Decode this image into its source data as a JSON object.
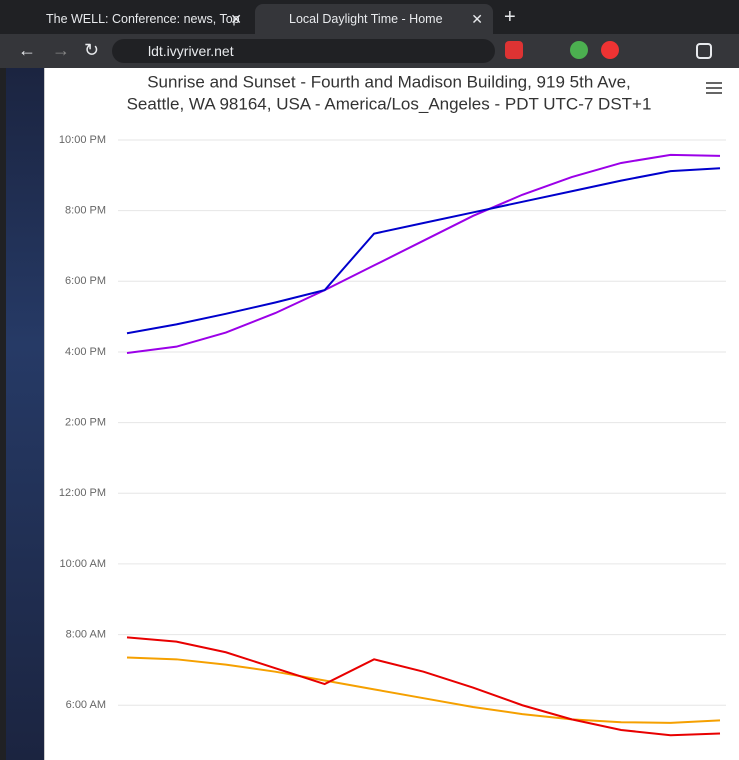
{
  "browser": {
    "tabs": [
      "The WELL: Conference: news, Top",
      "Local Daylight Time - Home"
    ],
    "url": "ldt.ivyriver.net"
  },
  "chart_data": {
    "type": "line",
    "title": [
      "Sunrise and Sunset - Fourth and Madison Building, 919 5th Ave,",
      "Seattle, WA 98164, USA - America/Los_Angeles - PDT UTC-7 DST+1"
    ],
    "ylim": [
      4.45,
      22.3
    ],
    "yticks": [
      {
        "value": 6,
        "label": "6:00 AM"
      },
      {
        "value": 8,
        "label": "8:00 AM"
      },
      {
        "value": 10,
        "label": "10:00 AM"
      },
      {
        "value": 12,
        "label": "12:00 PM"
      },
      {
        "value": 14,
        "label": "2:00 PM"
      },
      {
        "value": 16,
        "label": "4:00 PM"
      },
      {
        "value": 18,
        "label": "6:00 PM"
      },
      {
        "value": 20,
        "label": "8:00 PM"
      },
      {
        "value": 22,
        "label": "10:00 PM"
      }
    ],
    "grid": true,
    "series": [
      {
        "color": "#9b00e8",
        "values": [
          15.97,
          16.15,
          16.55,
          17.1,
          17.75,
          18.45,
          19.15,
          19.85,
          20.45,
          20.95,
          21.35,
          21.58,
          21.55
        ]
      },
      {
        "color": "#0000cc",
        "values": [
          16.53,
          16.78,
          17.08,
          17.4,
          17.75,
          19.35,
          19.65,
          19.95,
          20.25,
          20.55,
          20.85,
          21.12,
          21.2
        ]
      },
      {
        "color": "#f5a000",
        "values": [
          7.35,
          7.3,
          7.15,
          6.95,
          6.7,
          6.45,
          6.2,
          5.95,
          5.75,
          5.6,
          5.52,
          5.5,
          5.57
        ]
      },
      {
        "color": "#e80000",
        "values": [
          7.92,
          7.8,
          7.5,
          7.05,
          6.6,
          7.3,
          6.95,
          6.5,
          6.0,
          5.6,
          5.3,
          5.15,
          5.2
        ]
      }
    ]
  }
}
